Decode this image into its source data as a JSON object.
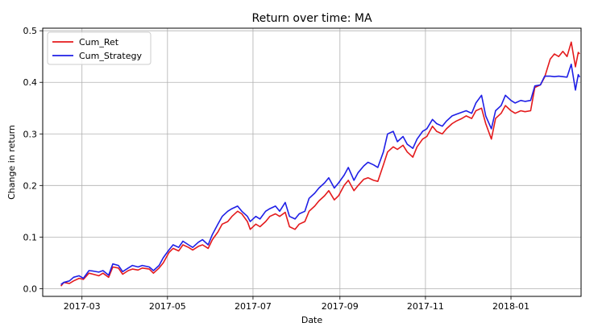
{
  "chart_data": {
    "type": "line",
    "title": "Return over time: MA",
    "xlabel": "Date",
    "ylabel": "Change in return",
    "grid": true,
    "legend": "top-left",
    "xlim": [
      "2017-02-01",
      "2018-02-20"
    ],
    "ylim": [
      -0.015,
      0.505
    ],
    "x_ticks": [
      {
        "date": "2017-03-01",
        "label": "2017-03"
      },
      {
        "date": "2017-05-01",
        "label": "2017-05"
      },
      {
        "date": "2017-07-01",
        "label": "2017-07"
      },
      {
        "date": "2017-09-01",
        "label": "2017-09"
      },
      {
        "date": "2017-11-01",
        "label": "2017-11"
      },
      {
        "date": "2018-01-01",
        "label": "2018-01"
      }
    ],
    "y_ticks": [
      {
        "value": 0.0,
        "label": "0.0"
      },
      {
        "value": 0.1,
        "label": "0.1"
      },
      {
        "value": 0.2,
        "label": "0.2"
      },
      {
        "value": 0.3,
        "label": "0.3"
      },
      {
        "value": 0.4,
        "label": "0.4"
      },
      {
        "value": 0.5,
        "label": "0.5"
      }
    ],
    "series": [
      {
        "name": "Cum_Ret",
        "color": "#e41a1c",
        "points": [
          [
            "2017-02-14",
            0.005
          ],
          [
            "2017-02-16",
            0.012
          ],
          [
            "2017-02-20",
            0.01
          ],
          [
            "2017-02-23",
            0.015
          ],
          [
            "2017-02-27",
            0.02
          ],
          [
            "2017-03-02",
            0.018
          ],
          [
            "2017-03-06",
            0.03
          ],
          [
            "2017-03-09",
            0.028
          ],
          [
            "2017-03-13",
            0.025
          ],
          [
            "2017-03-16",
            0.03
          ],
          [
            "2017-03-20",
            0.022
          ],
          [
            "2017-03-23",
            0.042
          ],
          [
            "2017-03-27",
            0.04
          ],
          [
            "2017-03-30",
            0.028
          ],
          [
            "2017-04-03",
            0.035
          ],
          [
            "2017-04-06",
            0.038
          ],
          [
            "2017-04-10",
            0.036
          ],
          [
            "2017-04-13",
            0.04
          ],
          [
            "2017-04-18",
            0.038
          ],
          [
            "2017-04-21",
            0.03
          ],
          [
            "2017-04-25",
            0.04
          ],
          [
            "2017-04-28",
            0.05
          ],
          [
            "2017-05-02",
            0.07
          ],
          [
            "2017-05-05",
            0.078
          ],
          [
            "2017-05-09",
            0.073
          ],
          [
            "2017-05-12",
            0.085
          ],
          [
            "2017-05-16",
            0.08
          ],
          [
            "2017-05-19",
            0.075
          ],
          [
            "2017-05-23",
            0.082
          ],
          [
            "2017-05-26",
            0.085
          ],
          [
            "2017-05-30",
            0.078
          ],
          [
            "2017-06-02",
            0.095
          ],
          [
            "2017-06-06",
            0.11
          ],
          [
            "2017-06-09",
            0.125
          ],
          [
            "2017-06-13",
            0.13
          ],
          [
            "2017-06-16",
            0.14
          ],
          [
            "2017-06-20",
            0.15
          ],
          [
            "2017-06-23",
            0.145
          ],
          [
            "2017-06-27",
            0.13
          ],
          [
            "2017-06-29",
            0.115
          ],
          [
            "2017-07-03",
            0.125
          ],
          [
            "2017-07-06",
            0.12
          ],
          [
            "2017-07-10",
            0.13
          ],
          [
            "2017-07-13",
            0.14
          ],
          [
            "2017-07-17",
            0.145
          ],
          [
            "2017-07-20",
            0.14
          ],
          [
            "2017-07-24",
            0.148
          ],
          [
            "2017-07-27",
            0.12
          ],
          [
            "2017-07-31",
            0.115
          ],
          [
            "2017-08-03",
            0.125
          ],
          [
            "2017-08-07",
            0.13
          ],
          [
            "2017-08-10",
            0.15
          ],
          [
            "2017-08-14",
            0.16
          ],
          [
            "2017-08-17",
            0.17
          ],
          [
            "2017-08-21",
            0.18
          ],
          [
            "2017-08-24",
            0.19
          ],
          [
            "2017-08-28",
            0.172
          ],
          [
            "2017-08-31",
            0.18
          ],
          [
            "2017-09-04",
            0.2
          ],
          [
            "2017-09-07",
            0.21
          ],
          [
            "2017-09-11",
            0.19
          ],
          [
            "2017-09-14",
            0.2
          ],
          [
            "2017-09-18",
            0.212
          ],
          [
            "2017-09-21",
            0.215
          ],
          [
            "2017-09-25",
            0.21
          ],
          [
            "2017-09-28",
            0.208
          ],
          [
            "2017-10-02",
            0.24
          ],
          [
            "2017-10-05",
            0.265
          ],
          [
            "2017-10-09",
            0.275
          ],
          [
            "2017-10-12",
            0.27
          ],
          [
            "2017-10-16",
            0.278
          ],
          [
            "2017-10-19",
            0.265
          ],
          [
            "2017-10-23",
            0.255
          ],
          [
            "2017-10-26",
            0.275
          ],
          [
            "2017-10-30",
            0.29
          ],
          [
            "2017-11-02",
            0.295
          ],
          [
            "2017-11-06",
            0.315
          ],
          [
            "2017-11-09",
            0.305
          ],
          [
            "2017-11-13",
            0.3
          ],
          [
            "2017-11-16",
            0.31
          ],
          [
            "2017-11-20",
            0.32
          ],
          [
            "2017-11-23",
            0.325
          ],
          [
            "2017-11-27",
            0.33
          ],
          [
            "2017-11-30",
            0.335
          ],
          [
            "2017-12-04",
            0.33
          ],
          [
            "2017-12-07",
            0.345
          ],
          [
            "2017-12-11",
            0.35
          ],
          [
            "2017-12-14",
            0.32
          ],
          [
            "2017-12-18",
            0.29
          ],
          [
            "2017-12-21",
            0.33
          ],
          [
            "2017-12-25",
            0.34
          ],
          [
            "2017-12-28",
            0.355
          ],
          [
            "2018-01-01",
            0.345
          ],
          [
            "2018-01-04",
            0.34
          ],
          [
            "2018-01-08",
            0.345
          ],
          [
            "2018-01-11",
            0.343
          ],
          [
            "2018-01-15",
            0.345
          ],
          [
            "2018-01-18",
            0.39
          ],
          [
            "2018-01-22",
            0.395
          ],
          [
            "2018-01-25",
            0.41
          ],
          [
            "2018-01-29",
            0.445
          ],
          [
            "2018-02-01",
            0.455
          ],
          [
            "2018-02-04",
            0.45
          ],
          [
            "2018-02-07",
            0.46
          ],
          [
            "2018-02-10",
            0.45
          ],
          [
            "2018-02-13",
            0.478
          ],
          [
            "2018-02-16",
            0.43
          ],
          [
            "2018-02-18",
            0.458
          ],
          [
            "2018-02-19",
            0.455
          ]
        ]
      },
      {
        "name": "Cum_Strategy",
        "color": "#1f1fe6",
        "points": [
          [
            "2017-02-14",
            0.008
          ],
          [
            "2017-02-16",
            0.012
          ],
          [
            "2017-02-20",
            0.015
          ],
          [
            "2017-02-23",
            0.022
          ],
          [
            "2017-02-27",
            0.025
          ],
          [
            "2017-03-02",
            0.02
          ],
          [
            "2017-03-06",
            0.035
          ],
          [
            "2017-03-09",
            0.034
          ],
          [
            "2017-03-13",
            0.032
          ],
          [
            "2017-03-16",
            0.035
          ],
          [
            "2017-03-20",
            0.026
          ],
          [
            "2017-03-23",
            0.048
          ],
          [
            "2017-03-27",
            0.045
          ],
          [
            "2017-03-30",
            0.033
          ],
          [
            "2017-04-03",
            0.04
          ],
          [
            "2017-04-06",
            0.045
          ],
          [
            "2017-04-10",
            0.042
          ],
          [
            "2017-04-13",
            0.045
          ],
          [
            "2017-04-18",
            0.042
          ],
          [
            "2017-04-21",
            0.035
          ],
          [
            "2017-04-25",
            0.045
          ],
          [
            "2017-04-28",
            0.06
          ],
          [
            "2017-05-02",
            0.075
          ],
          [
            "2017-05-05",
            0.085
          ],
          [
            "2017-05-09",
            0.08
          ],
          [
            "2017-05-12",
            0.092
          ],
          [
            "2017-05-16",
            0.085
          ],
          [
            "2017-05-19",
            0.08
          ],
          [
            "2017-05-23",
            0.09
          ],
          [
            "2017-05-26",
            0.095
          ],
          [
            "2017-05-30",
            0.085
          ],
          [
            "2017-06-02",
            0.105
          ],
          [
            "2017-06-06",
            0.125
          ],
          [
            "2017-06-09",
            0.14
          ],
          [
            "2017-06-13",
            0.15
          ],
          [
            "2017-06-16",
            0.155
          ],
          [
            "2017-06-20",
            0.16
          ],
          [
            "2017-06-23",
            0.15
          ],
          [
            "2017-06-27",
            0.14
          ],
          [
            "2017-06-29",
            0.13
          ],
          [
            "2017-07-03",
            0.14
          ],
          [
            "2017-07-06",
            0.135
          ],
          [
            "2017-07-10",
            0.15
          ],
          [
            "2017-07-13",
            0.155
          ],
          [
            "2017-07-17",
            0.16
          ],
          [
            "2017-07-20",
            0.15
          ],
          [
            "2017-07-24",
            0.167
          ],
          [
            "2017-07-27",
            0.14
          ],
          [
            "2017-07-31",
            0.135
          ],
          [
            "2017-08-03",
            0.145
          ],
          [
            "2017-08-07",
            0.15
          ],
          [
            "2017-08-10",
            0.175
          ],
          [
            "2017-08-14",
            0.185
          ],
          [
            "2017-08-17",
            0.195
          ],
          [
            "2017-08-21",
            0.205
          ],
          [
            "2017-08-24",
            0.215
          ],
          [
            "2017-08-28",
            0.195
          ],
          [
            "2017-08-31",
            0.205
          ],
          [
            "2017-09-04",
            0.22
          ],
          [
            "2017-09-07",
            0.235
          ],
          [
            "2017-09-11",
            0.21
          ],
          [
            "2017-09-14",
            0.225
          ],
          [
            "2017-09-18",
            0.238
          ],
          [
            "2017-09-21",
            0.245
          ],
          [
            "2017-09-25",
            0.24
          ],
          [
            "2017-09-28",
            0.235
          ],
          [
            "2017-10-02",
            0.265
          ],
          [
            "2017-10-05",
            0.3
          ],
          [
            "2017-10-09",
            0.305
          ],
          [
            "2017-10-12",
            0.285
          ],
          [
            "2017-10-16",
            0.295
          ],
          [
            "2017-10-19",
            0.28
          ],
          [
            "2017-10-23",
            0.272
          ],
          [
            "2017-10-26",
            0.29
          ],
          [
            "2017-10-30",
            0.305
          ],
          [
            "2017-11-02",
            0.31
          ],
          [
            "2017-11-06",
            0.328
          ],
          [
            "2017-11-09",
            0.32
          ],
          [
            "2017-11-13",
            0.315
          ],
          [
            "2017-11-16",
            0.325
          ],
          [
            "2017-11-20",
            0.335
          ],
          [
            "2017-11-23",
            0.338
          ],
          [
            "2017-11-27",
            0.342
          ],
          [
            "2017-11-30",
            0.345
          ],
          [
            "2017-12-04",
            0.34
          ],
          [
            "2017-12-07",
            0.36
          ],
          [
            "2017-12-11",
            0.375
          ],
          [
            "2017-12-14",
            0.335
          ],
          [
            "2017-12-18",
            0.31
          ],
          [
            "2017-12-21",
            0.345
          ],
          [
            "2017-12-25",
            0.355
          ],
          [
            "2017-12-28",
            0.375
          ],
          [
            "2018-01-01",
            0.365
          ],
          [
            "2018-01-04",
            0.36
          ],
          [
            "2018-01-08",
            0.365
          ],
          [
            "2018-01-11",
            0.363
          ],
          [
            "2018-01-15",
            0.365
          ],
          [
            "2018-01-18",
            0.393
          ],
          [
            "2018-01-22",
            0.395
          ],
          [
            "2018-01-25",
            0.412
          ],
          [
            "2018-01-29",
            0.412
          ],
          [
            "2018-02-01",
            0.411
          ],
          [
            "2018-02-04",
            0.412
          ],
          [
            "2018-02-07",
            0.411
          ],
          [
            "2018-02-10",
            0.41
          ],
          [
            "2018-02-13",
            0.435
          ],
          [
            "2018-02-16",
            0.385
          ],
          [
            "2018-02-18",
            0.415
          ],
          [
            "2018-02-19",
            0.41
          ]
        ]
      }
    ]
  }
}
